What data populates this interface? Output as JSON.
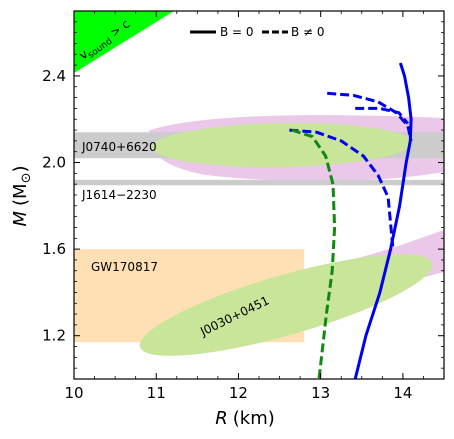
{
  "chart_data": {
    "type": "line",
    "xlabel": "R (km)",
    "xlabel_var": "R",
    "xlabel_unit": "(km)",
    "ylabel": "M (M☉)",
    "ylabel_var": "M",
    "ylabel_unit": "(M",
    "ylabel_sub": "⊙",
    "ylabel_close": ")",
    "xlim": [
      10,
      14.5
    ],
    "ylim": [
      1.0,
      2.7
    ],
    "xticks": [
      "10",
      "11",
      "12",
      "13",
      "14"
    ],
    "xtick_values": [
      10,
      11,
      12,
      13,
      14
    ],
    "yticks": [
      "1.2",
      "1.6",
      "2.0",
      "2.4"
    ],
    "ytick_values": [
      1.2,
      1.6,
      2.0,
      2.4
    ],
    "grid": false,
    "legend": {
      "placement": "top-right",
      "entries": [
        {
          "label": "B = 0",
          "style": "solid"
        },
        {
          "label": "B ≠ 0",
          "style": "dashed"
        }
      ]
    },
    "annotations": {
      "causality": "v_sound > c",
      "causality_label": "v",
      "causality_sub": "sound",
      "causality_rest": " > c",
      "pulsar_j0740": "J0740+6620",
      "pulsar_j1614": "J1614−2230",
      "gw": "GW170817",
      "nicer": "J0030+0451"
    },
    "colors": {
      "causality": "#00ff00",
      "pulsar_band": "#cccccc",
      "gw": "#ffe0b5",
      "nicer_green": "#c8e59a",
      "nicer_pink": "#ebc8ea",
      "b0": "#0000ee",
      "bneq0_blue": "#0000ee",
      "bneq0_green": "#118811",
      "gw_text": "#f08c00"
    },
    "bands": [
      {
        "name": "J0740+6620",
        "y": [
          2.02,
          2.14
        ]
      },
      {
        "name": "J1614−2230",
        "y": [
          1.895,
          1.92
        ]
      }
    ],
    "gw_region": {
      "x": [
        10,
        12.8
      ],
      "y": [
        1.17,
        1.6
      ]
    },
    "series": [
      {
        "name": "B = 0",
        "style": "solid",
        "color": "#0000ee",
        "x": [
          13.42,
          13.55,
          13.72,
          13.85,
          13.96,
          14.04,
          14.09,
          14.1,
          14.07,
          14.02,
          13.97
        ],
        "y": [
          1.0,
          1.2,
          1.4,
          1.6,
          1.8,
          2.0,
          2.1,
          2.2,
          2.3,
          2.4,
          2.46
        ]
      },
      {
        "name": "B ≠ 0 (upper branch)",
        "style": "dashed",
        "color": "#0000ee",
        "x": [
          13.08,
          13.4,
          13.7,
          13.92,
          14.06,
          14.1
        ],
        "y": [
          2.32,
          2.31,
          2.28,
          2.23,
          2.17,
          2.1
        ]
      },
      {
        "name": "B ≠ 0 (inner branch)",
        "style": "dashed",
        "color": "#0000ee",
        "x": [
          13.42,
          13.72,
          13.95,
          14.06
        ],
        "y": [
          2.25,
          2.25,
          2.23,
          2.18
        ]
      },
      {
        "name": "B ≠ 0 (lower branch)",
        "style": "dashed",
        "color": "#0000ee",
        "x": [
          12.62,
          12.95,
          13.25,
          13.52,
          13.7,
          13.82,
          13.88
        ],
        "y": [
          2.15,
          2.14,
          2.1,
          2.03,
          1.94,
          1.84,
          1.6
        ]
      },
      {
        "name": "B ≠ 0 (green)",
        "style": "dashed",
        "color": "#118811",
        "x": [
          12.65,
          12.9,
          13.06,
          13.15,
          13.17,
          13.14,
          13.07,
          12.98
        ],
        "y": [
          2.15,
          2.12,
          2.03,
          1.9,
          1.7,
          1.5,
          1.3,
          1.0
        ]
      }
    ]
  }
}
